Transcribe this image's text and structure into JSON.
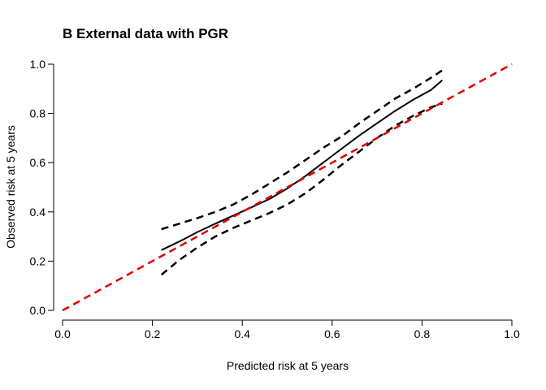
{
  "chart_data": {
    "type": "line",
    "title": "B External data with PGR",
    "xlabel": "Predicted risk at 5 years",
    "ylabel": "Observed risk at 5 years",
    "xlim": [
      0,
      1
    ],
    "ylim": [
      0,
      1
    ],
    "xticks": [
      "0.0",
      "0.2",
      "0.4",
      "0.6",
      "0.8",
      "1.0"
    ],
    "yticks": [
      "0.0",
      "0.2",
      "0.4",
      "0.6",
      "0.8",
      "1.0"
    ],
    "grid": false,
    "legend": "none",
    "series": [
      {
        "role": "calibration",
        "color": "#000000",
        "style": "solid",
        "x": [
          0.22,
          0.26,
          0.3,
          0.34,
          0.38,
          0.42,
          0.46,
          0.5,
          0.54,
          0.58,
          0.62,
          0.66,
          0.7,
          0.74,
          0.78,
          0.82,
          0.845
        ],
        "y": [
          0.245,
          0.28,
          0.318,
          0.352,
          0.385,
          0.418,
          0.452,
          0.495,
          0.545,
          0.6,
          0.655,
          0.71,
          0.76,
          0.81,
          0.855,
          0.895,
          0.935
        ]
      },
      {
        "role": "upper-ci",
        "color": "#000000",
        "style": "dashed",
        "x": [
          0.22,
          0.26,
          0.3,
          0.34,
          0.38,
          0.42,
          0.46,
          0.5,
          0.54,
          0.58,
          0.62,
          0.66,
          0.7,
          0.74,
          0.78,
          0.82,
          0.845
        ],
        "y": [
          0.33,
          0.352,
          0.375,
          0.4,
          0.43,
          0.47,
          0.515,
          0.56,
          0.61,
          0.66,
          0.705,
          0.76,
          0.81,
          0.86,
          0.9,
          0.945,
          0.975
        ]
      },
      {
        "role": "lower-ci",
        "color": "#000000",
        "style": "dashed",
        "x": [
          0.22,
          0.26,
          0.3,
          0.34,
          0.38,
          0.42,
          0.46,
          0.5,
          0.54,
          0.58,
          0.62,
          0.66,
          0.7,
          0.74,
          0.78,
          0.82,
          0.845
        ],
        "y": [
          0.145,
          0.205,
          0.255,
          0.3,
          0.335,
          0.365,
          0.395,
          0.43,
          0.475,
          0.53,
          0.59,
          0.645,
          0.7,
          0.75,
          0.79,
          0.825,
          0.84
        ]
      },
      {
        "role": "reference",
        "color": "#e00000",
        "style": "dashed",
        "x": [
          0,
          1
        ],
        "y": [
          0,
          1
        ]
      }
    ]
  }
}
